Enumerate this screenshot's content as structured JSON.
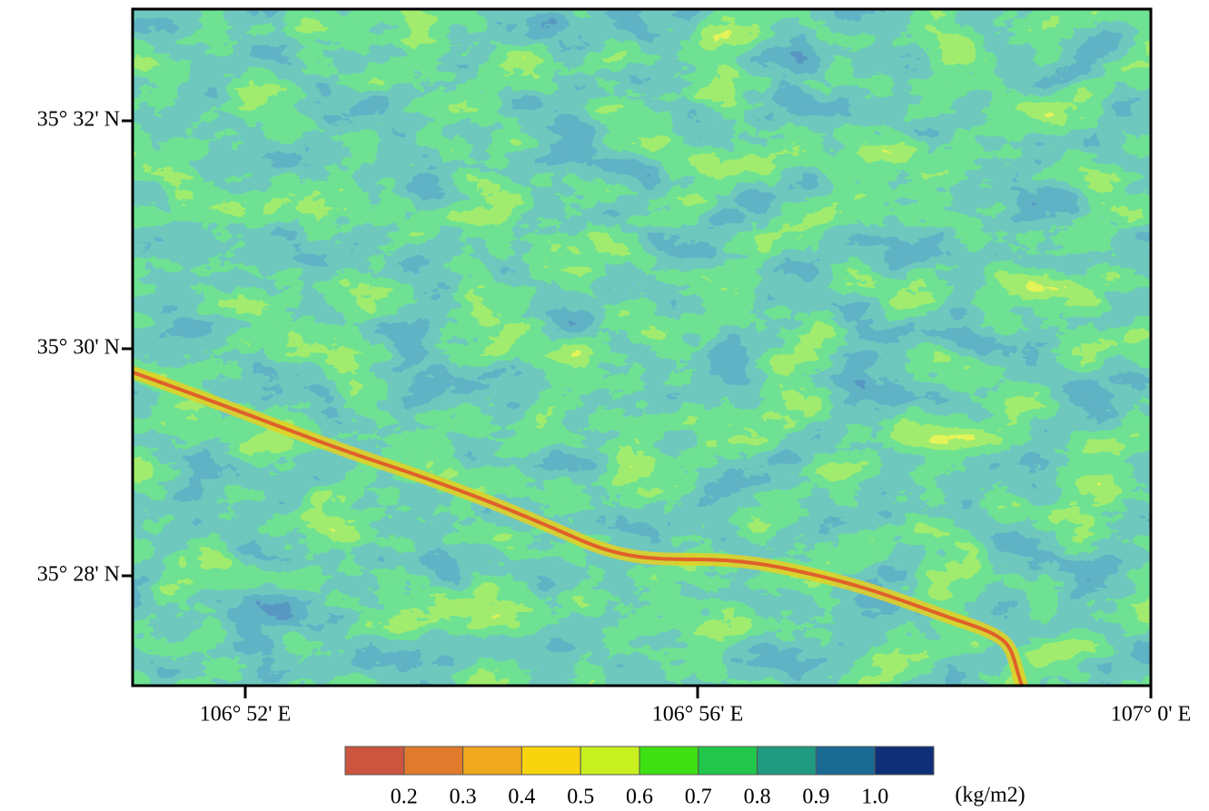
{
  "map": {
    "y_labels": [
      "35° 32' N",
      "35° 30' N",
      "35° 28' N"
    ],
    "x_labels": [
      "106° 52' E",
      "106° 56' E",
      "107° 0' E"
    ],
    "colorbar": {
      "colors": [
        "#cc5540",
        "#e07a2c",
        "#f0a81e",
        "#f8d40e",
        "#c8f020",
        "#3ee014",
        "#22c64a",
        "#209a80",
        "#1a6a94",
        "#0e2e78"
      ],
      "labels": [
        "0.2",
        "0.3",
        "0.4",
        "0.5",
        "0.6",
        "0.7",
        "0.8",
        "0.9",
        "1.0"
      ],
      "unit": "(kg/m2)"
    }
  }
}
